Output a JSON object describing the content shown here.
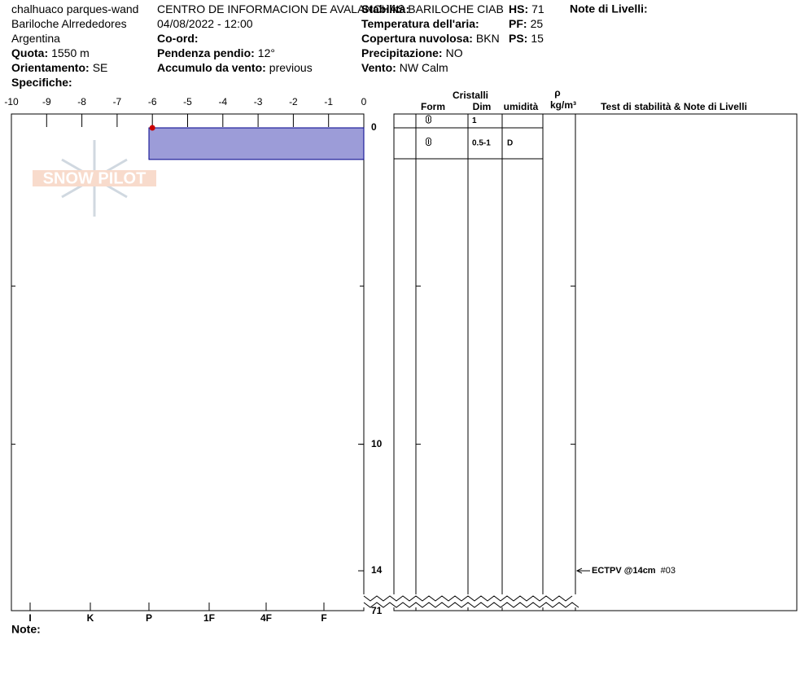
{
  "header": {
    "col1": [
      {
        "value": "chalhuaco parques-wand"
      },
      {
        "value": "Bariloche Alrrededores"
      },
      {
        "value": "Argentina"
      },
      {
        "label": "Quota:",
        "value": "1550 m"
      },
      {
        "label": "Orientamento:",
        "value": "SE"
      },
      {
        "label": "Specifiche:"
      }
    ],
    "col2": [
      {
        "value": "CENTRO DE INFORMACION DE AVALANCHAS BARILOCHE CIAB"
      },
      {
        "value": "04/08/2022 - 12:00"
      },
      {
        "label": "Co-ord:"
      },
      {
        "label": "Pendenza pendio:",
        "value": "12°"
      },
      {
        "label": "Accumulo da vento:",
        "value": "previous"
      }
    ],
    "col3": [
      {
        "label": "Stabilità:"
      },
      {
        "label": "Temperatura dell'aria:"
      },
      {
        "label": "Copertura nuvolosa:",
        "value": "BKN"
      },
      {
        "label": "Precipitazione:",
        "value": "NO"
      },
      {
        "label": "Vento:",
        "value": "NW Calm"
      }
    ],
    "col4": [
      {
        "label": "HS:",
        "value": "71"
      },
      {
        "label": "PF:",
        "value": "25"
      },
      {
        "label": "PS:",
        "value": "15"
      }
    ],
    "layer_notes": "Note di Livelli:"
  },
  "logo": "SNOW PILOT",
  "temperature_axis": {
    "lim": [
      -10,
      0
    ],
    "ticks": [
      -10,
      -9,
      -8,
      -7,
      -6,
      -5,
      -4,
      -3,
      -2,
      -1,
      0
    ]
  },
  "depth_axis": {
    "ticks": [
      0,
      10,
      14
    ],
    "marks": [
      5,
      10
    ],
    "bottom_label": "71"
  },
  "hardness_axis": {
    "labels": [
      "I",
      "K",
      "P",
      "1F",
      "4F",
      "F"
    ]
  },
  "temperature_profile": [
    {
      "depth": 0,
      "temp": -6
    }
  ],
  "layers": [
    {
      "top": 0,
      "bottom": 1,
      "hardness": "P"
    }
  ],
  "table": {
    "title": "Cristalli",
    "columns": [
      "Form",
      "Dim",
      "umidità"
    ],
    "density": [
      "ρ",
      "kg/m³"
    ],
    "tests_header": "Test di stabilità & Note di Livelli",
    "rows": [
      {
        "dim": "1",
        "moisture": ""
      },
      {
        "dim": "0.5-1",
        "moisture": "D"
      }
    ]
  },
  "tests": [
    {
      "depth": 14,
      "label": "ECTPV @14cm",
      "number": "#03"
    }
  ],
  "notes": "Note:"
}
